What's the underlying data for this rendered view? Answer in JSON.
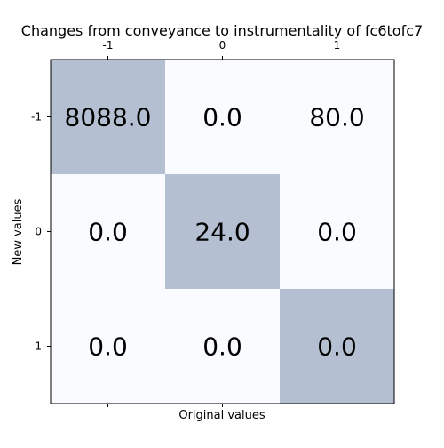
{
  "chart_data": {
    "type": "heatmap",
    "title": "Changes from conveyance to instrumentality of fc6tofc7",
    "xlabel": "Original values",
    "ylabel": "New values",
    "x_categories": [
      "-1",
      "0",
      "1"
    ],
    "y_categories": [
      "-1",
      "0",
      "1"
    ],
    "values": [
      [
        8088.0,
        0.0,
        80.0
      ],
      [
        0.0,
        24.0,
        0.0
      ],
      [
        0.0,
        0.0,
        0.0
      ]
    ],
    "cell_labels": [
      [
        "8088.0",
        "0.0",
        "80.0"
      ],
      [
        "0.0",
        "24.0",
        "0.0"
      ],
      [
        "0.0",
        "0.0",
        "0.0"
      ]
    ],
    "highlight_diagonal": true,
    "colors": {
      "highlight": "#b4c0d2",
      "background": "#f9fbfe",
      "frame": "#000000"
    },
    "x_ticks_position": "top",
    "grid": false
  }
}
